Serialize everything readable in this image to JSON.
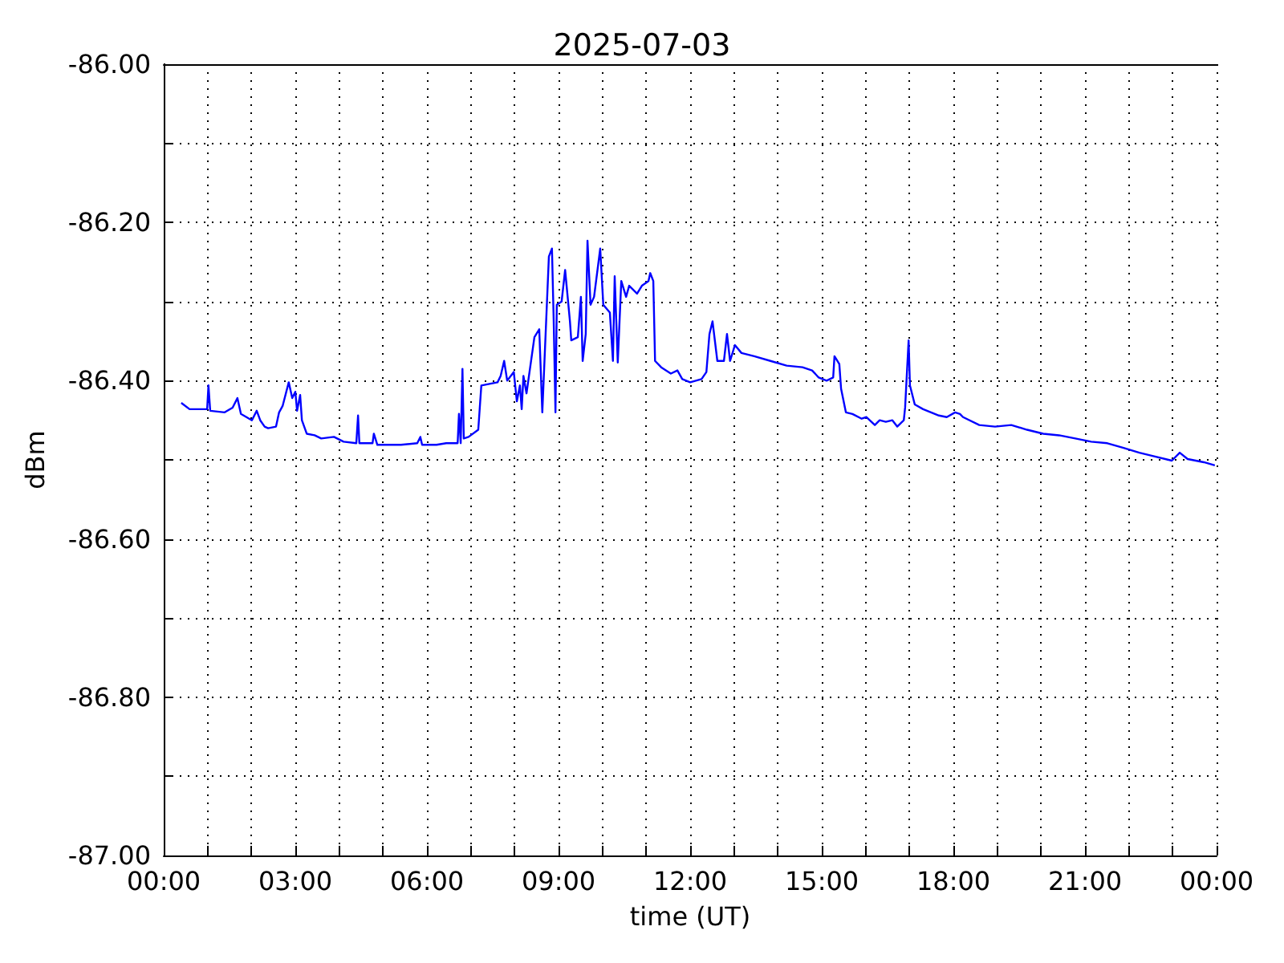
{
  "chart_data": {
    "type": "line",
    "title": "2025-07-03",
    "xlabel": "time (UT)",
    "ylabel": "dBm",
    "xlim": [
      0,
      24
    ],
    "xticks": [
      {
        "value": 0,
        "label": "00:00"
      },
      {
        "value": 1,
        "label": null
      },
      {
        "value": 2,
        "label": null
      },
      {
        "value": 3,
        "label": "03:00"
      },
      {
        "value": 4,
        "label": null
      },
      {
        "value": 5,
        "label": null
      },
      {
        "value": 6,
        "label": "06:00"
      },
      {
        "value": 7,
        "label": null
      },
      {
        "value": 8,
        "label": null
      },
      {
        "value": 9,
        "label": "09:00"
      },
      {
        "value": 10,
        "label": null
      },
      {
        "value": 11,
        "label": null
      },
      {
        "value": 12,
        "label": "12:00"
      },
      {
        "value": 13,
        "label": null
      },
      {
        "value": 14,
        "label": null
      },
      {
        "value": 15,
        "label": "15:00"
      },
      {
        "value": 16,
        "label": null
      },
      {
        "value": 17,
        "label": null
      },
      {
        "value": 18,
        "label": "18:00"
      },
      {
        "value": 19,
        "label": null
      },
      {
        "value": 20,
        "label": null
      },
      {
        "value": 21,
        "label": "21:00"
      },
      {
        "value": 22,
        "label": null
      },
      {
        "value": 23,
        "label": null
      },
      {
        "value": 24,
        "label": "00:00"
      }
    ],
    "ylim": [
      -87,
      -86
    ],
    "yticks": [
      {
        "value": -87,
        "label": "-87.00"
      },
      {
        "value": -86.9,
        "label": null
      },
      {
        "value": -86.8,
        "label": "-86.80"
      },
      {
        "value": -86.7,
        "label": null
      },
      {
        "value": -86.6,
        "label": "-86.60"
      },
      {
        "value": -86.5,
        "label": null
      },
      {
        "value": -86.4,
        "label": "-86.40"
      },
      {
        "value": -86.3,
        "label": null
      },
      {
        "value": -86.2,
        "label": "-86.20"
      },
      {
        "value": -86.1,
        "label": null
      },
      {
        "value": -86,
        "label": "-86.00"
      }
    ],
    "grid": true,
    "marker": "none",
    "line_style": "solid",
    "series": [
      {
        "color": "#0000ff",
        "x": [
          0.4,
          0.59,
          0.99,
          1.02,
          1.06,
          1.39,
          1.57,
          1.68,
          1.76,
          2.01,
          2.12,
          2.2,
          2.3,
          2.38,
          2.56,
          2.63,
          2.71,
          2.85,
          2.93,
          3.0,
          3.04,
          3.11,
          3.15,
          3.26,
          3.44,
          3.59,
          3.88,
          4.1,
          4.39,
          4.43,
          4.46,
          4.76,
          4.79,
          4.87,
          5.41,
          5.78,
          5.85,
          5.89,
          6.22,
          6.44,
          6.7,
          6.73,
          6.77,
          6.81,
          6.84,
          6.95,
          7.17,
          7.24,
          7.61,
          7.68,
          7.76,
          7.83,
          7.98,
          8.05,
          8.12,
          8.16,
          8.2,
          8.27,
          8.45,
          8.56,
          8.63,
          8.71,
          8.78,
          8.85,
          8.89,
          8.93,
          8.96,
          9.07,
          9.15,
          9.26,
          9.29,
          9.44,
          9.51,
          9.55,
          9.62,
          9.66,
          9.73,
          9.81,
          9.95,
          10.02,
          10.17,
          10.24,
          10.28,
          10.35,
          10.43,
          10.54,
          10.61,
          10.79,
          10.9,
          11.05,
          11.09,
          11.16,
          11.2,
          11.34,
          11.56,
          11.71,
          11.82,
          12.0,
          12.26,
          12.37,
          12.44,
          12.51,
          12.62,
          12.77,
          12.84,
          12.91,
          13.02,
          13.17,
          13.46,
          13.83,
          14.2,
          14.56,
          14.78,
          14.93,
          15.11,
          15.26,
          15.29,
          15.4,
          15.44,
          15.55,
          15.7,
          15.91,
          16.02,
          16.21,
          16.32,
          16.46,
          16.61,
          16.72,
          16.87,
          16.9,
          16.98,
          17.01,
          17.12,
          17.31,
          17.49,
          17.67,
          17.85,
          18.04,
          18.15,
          18.22,
          18.59,
          18.95,
          19.32,
          19.68,
          20.05,
          20.41,
          20.78,
          21.14,
          21.51,
          21.88,
          22.24,
          22.54,
          22.98,
          23.16,
          23.34,
          23.71,
          23.96
        ],
        "values": [
          -86.428,
          -86.436,
          -86.436,
          -86.406,
          -86.438,
          -86.44,
          -86.434,
          -86.422,
          -86.442,
          -86.45,
          -86.438,
          -86.45,
          -86.458,
          -86.46,
          -86.458,
          -86.44,
          -86.432,
          -86.402,
          -86.422,
          -86.414,
          -86.438,
          -86.418,
          -86.45,
          -86.467,
          -86.469,
          -86.473,
          -86.471,
          -86.477,
          -86.479,
          -86.444,
          -86.479,
          -86.479,
          -86.467,
          -86.481,
          -86.481,
          -86.479,
          -86.471,
          -86.481,
          -86.481,
          -86.479,
          -86.479,
          -86.442,
          -86.479,
          -86.385,
          -86.473,
          -86.471,
          -86.462,
          -86.406,
          -86.402,
          -86.394,
          -86.375,
          -86.4,
          -86.389,
          -86.426,
          -86.406,
          -86.436,
          -86.394,
          -86.416,
          -86.345,
          -86.335,
          -86.44,
          -86.335,
          -86.243,
          -86.233,
          -86.325,
          -86.44,
          -86.304,
          -86.3,
          -86.26,
          -86.325,
          -86.349,
          -86.345,
          -86.294,
          -86.375,
          -86.341,
          -86.223,
          -86.304,
          -86.294,
          -86.233,
          -86.304,
          -86.314,
          -86.375,
          -86.268,
          -86.377,
          -86.274,
          -86.294,
          -86.28,
          -86.29,
          -86.28,
          -86.274,
          -86.264,
          -86.274,
          -86.375,
          -86.383,
          -86.391,
          -86.387,
          -86.398,
          -86.402,
          -86.398,
          -86.389,
          -86.341,
          -86.325,
          -86.375,
          -86.375,
          -86.341,
          -86.375,
          -86.355,
          -86.365,
          -86.369,
          -86.375,
          -86.381,
          -86.383,
          -86.387,
          -86.396,
          -86.4,
          -86.396,
          -86.369,
          -86.379,
          -86.41,
          -86.44,
          -86.442,
          -86.448,
          -86.446,
          -86.456,
          -86.45,
          -86.452,
          -86.45,
          -86.458,
          -86.45,
          -86.434,
          -86.349,
          -86.406,
          -86.43,
          -86.436,
          -86.44,
          -86.444,
          -86.446,
          -86.44,
          -86.442,
          -86.446,
          -86.456,
          -86.458,
          -86.456,
          -86.462,
          -86.467,
          -86.469,
          -86.473,
          -86.477,
          -86.479,
          -86.485,
          -86.491,
          -86.495,
          -86.501,
          -86.491,
          -86.499,
          -86.503,
          -86.507
        ]
      }
    ]
  }
}
